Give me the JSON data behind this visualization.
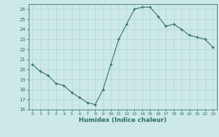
{
  "x": [
    0,
    1,
    2,
    3,
    4,
    5,
    6,
    7,
    8,
    9,
    10,
    11,
    12,
    13,
    14,
    15,
    16,
    17,
    18,
    19,
    20,
    21,
    22,
    23
  ],
  "y": [
    20.5,
    19.8,
    19.4,
    18.6,
    18.4,
    17.7,
    17.2,
    16.7,
    16.5,
    18.0,
    20.5,
    23.0,
    24.5,
    26.0,
    26.2,
    26.2,
    25.3,
    24.3,
    24.5,
    24.0,
    23.4,
    23.2,
    23.0,
    22.2
  ],
  "ylim": [
    16,
    26.5
  ],
  "xlim": [
    -0.5,
    23.5
  ],
  "yticks": [
    16,
    17,
    18,
    19,
    20,
    21,
    22,
    23,
    24,
    25,
    26
  ],
  "xticks": [
    0,
    1,
    2,
    3,
    4,
    5,
    6,
    7,
    8,
    9,
    10,
    11,
    12,
    13,
    14,
    15,
    16,
    17,
    18,
    19,
    20,
    21,
    22,
    23
  ],
  "xlabel": "Humidex (Indice chaleur)",
  "line_color": "#2d6e5e",
  "marker_color": "#2d6e5e",
  "bg_color": "#cce8e8",
  "grid_color": "#b0d4d4"
}
